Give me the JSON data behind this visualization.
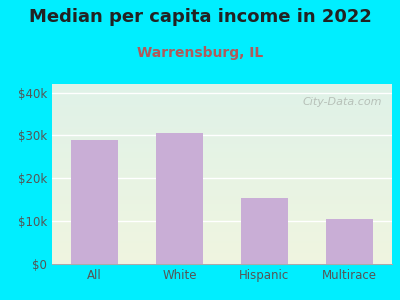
{
  "title": "Median per capita income in 2022",
  "subtitle": "Warrensburg, IL",
  "categories": [
    "All",
    "White",
    "Hispanic",
    "Multirace"
  ],
  "values": [
    29000,
    30500,
    15500,
    10500
  ],
  "bar_color": "#c9aed6",
  "title_fontsize": 13,
  "subtitle_fontsize": 10,
  "subtitle_color": "#b05a5a",
  "title_color": "#222222",
  "tick_color": "#555555",
  "outer_bg_color": "#00eeff",
  "plot_bg_top": "#dff2e8",
  "plot_bg_bottom": "#f0f5e0",
  "ylim": [
    0,
    42000
  ],
  "yticks": [
    0,
    10000,
    20000,
    30000,
    40000
  ],
  "ytick_labels": [
    "$0",
    "$10k",
    "$20k",
    "$30k",
    "$40k"
  ],
  "watermark_text": "City-Data.com",
  "watermark_color": "#b0b8b0"
}
